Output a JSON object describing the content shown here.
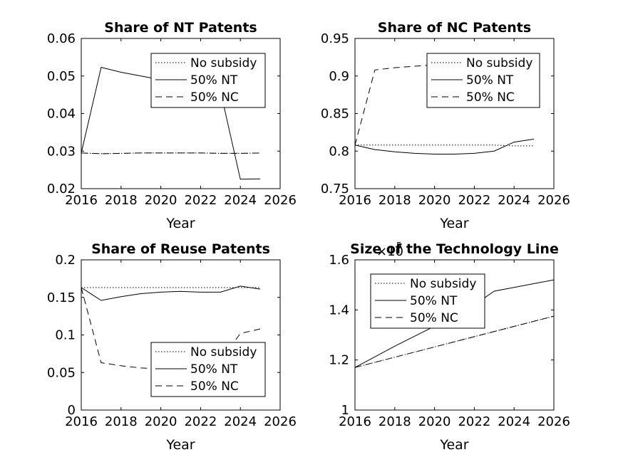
{
  "chart_data": [
    {
      "type": "line",
      "title": "Share of NT Patents",
      "xlabel": "Year",
      "ylabel": "",
      "xlim": [
        2016,
        2026
      ],
      "ylim": [
        0.02,
        0.06
      ],
      "xticks": [
        "2016",
        "2018",
        "2020",
        "2022",
        "2024",
        "2026"
      ],
      "yticks": [
        "0.02",
        "0.03",
        "0.04",
        "0.05",
        "0.06"
      ],
      "legend_position": "top-right",
      "series": [
        {
          "name": "No subsidy",
          "style": "dotted",
          "x": [
            2016,
            2017,
            2018,
            2019,
            2020,
            2021,
            2022,
            2023,
            2024,
            2025
          ],
          "y": [
            0.0295,
            0.0293,
            0.0294,
            0.0295,
            0.0295,
            0.0295,
            0.0295,
            0.0294,
            0.0294,
            0.0295
          ]
        },
        {
          "name": "50% NT",
          "style": "solid",
          "x": [
            2016,
            2017,
            2018,
            2019,
            2020,
            2021,
            2022,
            2023,
            2024,
            2025
          ],
          "y": [
            0.0295,
            0.0523,
            0.051,
            0.05,
            0.049,
            0.048,
            0.047,
            0.046,
            0.0225,
            0.0226
          ]
        },
        {
          "name": "50% NC",
          "style": "dashed",
          "x": [
            2016,
            2017,
            2018,
            2019,
            2020,
            2021,
            2022,
            2023,
            2024,
            2025
          ],
          "y": [
            0.0295,
            0.0293,
            0.0294,
            0.0295,
            0.0295,
            0.0295,
            0.0295,
            0.0294,
            0.0294,
            0.0295
          ]
        }
      ]
    },
    {
      "type": "line",
      "title": "Share of NC Patents",
      "xlabel": "Year",
      "ylabel": "",
      "xlim": [
        2016,
        2026
      ],
      "ylim": [
        0.75,
        0.95
      ],
      "xticks": [
        "2016",
        "2018",
        "2020",
        "2022",
        "2024",
        "2026"
      ],
      "yticks": [
        "0.75",
        "0.8",
        "0.85",
        "0.9",
        "0.95"
      ],
      "legend_position": "top-right",
      "series": [
        {
          "name": "No subsidy",
          "style": "dotted",
          "x": [
            2016,
            2017,
            2018,
            2019,
            2020,
            2021,
            2022,
            2023,
            2024,
            2025
          ],
          "y": [
            0.808,
            0.808,
            0.808,
            0.808,
            0.808,
            0.808,
            0.808,
            0.808,
            0.807,
            0.807
          ]
        },
        {
          "name": "50% NT",
          "style": "solid",
          "x": [
            2016,
            2017,
            2018,
            2019,
            2020,
            2021,
            2022,
            2023,
            2024,
            2025
          ],
          "y": [
            0.808,
            0.802,
            0.799,
            0.797,
            0.796,
            0.796,
            0.797,
            0.8,
            0.812,
            0.816
          ]
        },
        {
          "name": "50% NC",
          "style": "dashed",
          "x": [
            2016,
            2017,
            2018,
            2019,
            2020,
            2021,
            2022,
            2023,
            2024,
            2025
          ],
          "y": [
            0.808,
            0.908,
            0.911,
            0.913,
            0.915,
            0.916,
            0.917,
            0.918,
            0.919,
            0.919
          ]
        }
      ]
    },
    {
      "type": "line",
      "title": "Share of Reuse Patents",
      "xlabel": "Year",
      "ylabel": "",
      "xlim": [
        2016,
        2026
      ],
      "ylim": [
        0,
        0.2
      ],
      "xticks": [
        "2016",
        "2018",
        "2020",
        "2022",
        "2024",
        "2026"
      ],
      "yticks": [
        "0",
        "0.05",
        "0.1",
        "0.15",
        "0.2"
      ],
      "legend_position": "bottom-right",
      "series": [
        {
          "name": "No subsidy",
          "style": "dotted",
          "x": [
            2016,
            2017,
            2018,
            2019,
            2020,
            2021,
            2022,
            2023,
            2024,
            2025
          ],
          "y": [
            0.163,
            0.163,
            0.163,
            0.163,
            0.163,
            0.163,
            0.163,
            0.163,
            0.163,
            0.163
          ]
        },
        {
          "name": "50% NT",
          "style": "solid",
          "x": [
            2016,
            2017,
            2018,
            2019,
            2020,
            2021,
            2022,
            2023,
            2024,
            2025
          ],
          "y": [
            0.163,
            0.146,
            0.151,
            0.155,
            0.157,
            0.158,
            0.157,
            0.157,
            0.165,
            0.161
          ]
        },
        {
          "name": "50% NC",
          "style": "dashed",
          "x": [
            2016,
            2017,
            2018,
            2019,
            2020,
            2021,
            2022,
            2023,
            2024,
            2025
          ],
          "y": [
            0.163,
            0.063,
            0.059,
            0.056,
            0.055,
            0.056,
            0.058,
            0.066,
            0.102,
            0.108
          ]
        }
      ]
    },
    {
      "type": "line",
      "title": "Size of the Technology Line",
      "exponent_label": "×10",
      "exponent_power": "5",
      "xlabel": "Year",
      "ylabel": "",
      "xlim": [
        2016,
        2026
      ],
      "ylim": [
        1,
        1.6
      ],
      "xticks": [
        "2016",
        "2018",
        "2020",
        "2022",
        "2024",
        "2026"
      ],
      "yticks": [
        "1",
        "1.2",
        "1.4",
        "1.6"
      ],
      "legend_position": "top-left",
      "series": [
        {
          "name": "No subsidy",
          "style": "dotted",
          "x": [
            2016,
            2026
          ],
          "y": [
            1.17,
            1.375
          ]
        },
        {
          "name": "50% NT",
          "style": "solid",
          "x": [
            2016,
            2018,
            2020,
            2022,
            2023,
            2024,
            2025,
            2026
          ],
          "y": [
            1.17,
            1.255,
            1.335,
            1.42,
            1.475,
            1.49,
            1.505,
            1.52
          ]
        },
        {
          "name": "50% NC",
          "style": "dashed",
          "x": [
            2016,
            2026
          ],
          "y": [
            1.17,
            1.375
          ]
        }
      ]
    }
  ]
}
